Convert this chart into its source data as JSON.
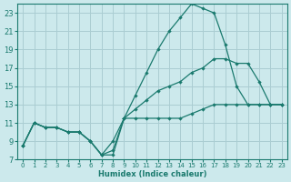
{
  "background_color": "#cce9ec",
  "grid_color": "#aacdd2",
  "line_color": "#1a7a6e",
  "xlabel": "Humidex (Indice chaleur)",
  "xlim": [
    0,
    23
  ],
  "ylim": [
    7,
    24
  ],
  "yticks": [
    7,
    9,
    11,
    13,
    15,
    17,
    19,
    21,
    23
  ],
  "xticks": [
    0,
    1,
    2,
    3,
    4,
    5,
    6,
    7,
    8,
    9,
    10,
    11,
    12,
    13,
    14,
    15,
    16,
    17,
    18,
    19,
    20,
    21,
    22,
    23
  ],
  "series": [
    {
      "x": [
        0,
        1,
        2,
        3,
        4,
        5,
        6,
        7,
        8,
        9,
        10,
        11,
        12,
        13,
        14,
        15,
        16,
        17,
        18,
        19,
        20,
        21,
        22,
        23
      ],
      "y": [
        8.5,
        11.0,
        10.5,
        10.5,
        10.0,
        10.0,
        9.0,
        7.5,
        7.5,
        11.5,
        14.0,
        16.5,
        19.0,
        21.0,
        22.5,
        24.0,
        23.5,
        23.0,
        19.5,
        15.0,
        13.0,
        13.0,
        13.0,
        13.0
      ]
    },
    {
      "x": [
        0,
        1,
        2,
        3,
        4,
        5,
        6,
        7,
        8,
        9,
        10,
        11,
        12,
        13,
        14,
        15,
        16,
        17,
        18,
        19,
        20,
        21,
        22,
        23
      ],
      "y": [
        8.5,
        11.0,
        10.5,
        10.5,
        10.0,
        10.0,
        9.0,
        7.5,
        9.0,
        11.5,
        12.5,
        13.5,
        14.5,
        15.0,
        15.5,
        16.5,
        17.0,
        18.0,
        18.0,
        17.5,
        17.5,
        15.5,
        13.0,
        13.0
      ]
    },
    {
      "x": [
        0,
        1,
        2,
        3,
        4,
        5,
        6,
        7,
        8,
        9,
        10,
        11,
        12,
        13,
        14,
        15,
        16,
        17,
        18,
        19,
        20,
        21,
        22,
        23
      ],
      "y": [
        8.5,
        11.0,
        10.5,
        10.5,
        10.0,
        10.0,
        9.0,
        7.5,
        8.0,
        11.5,
        11.5,
        11.5,
        11.5,
        11.5,
        11.5,
        12.0,
        12.5,
        13.0,
        13.0,
        13.0,
        13.0,
        13.0,
        13.0,
        13.0
      ]
    }
  ]
}
